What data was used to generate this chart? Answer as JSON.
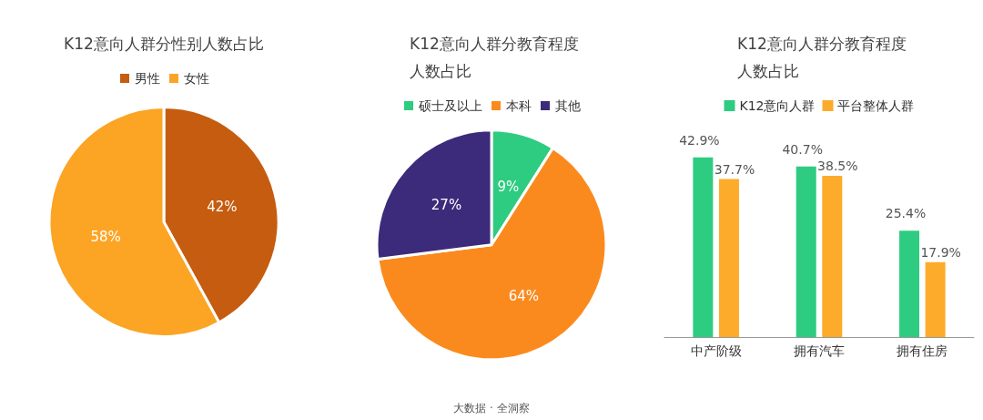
{
  "chart_data": [
    {
      "type": "pie",
      "title": "K12意向人群分性别人数占比",
      "categories": [
        "男性",
        "女性"
      ],
      "values": [
        42,
        58
      ],
      "colors": [
        "#c55c10",
        "#fca424"
      ],
      "value_labels": [
        "42%",
        "58%"
      ],
      "legend": "top"
    },
    {
      "type": "pie",
      "title": "K12意向人群分教育程度人数占比",
      "categories": [
        "硕士及以上",
        "本科",
        "其他"
      ],
      "values": [
        9,
        64,
        27
      ],
      "colors": [
        "#2ecc80",
        "#fb8a1e",
        "#3c2a7a"
      ],
      "value_labels": [
        "9%",
        "64%",
        "27%"
      ],
      "legend": "top"
    },
    {
      "type": "bar",
      "title": "K12意向人群分教育程度人数占比",
      "categories": [
        "中产阶级",
        "拥有汽车",
        "拥有住房"
      ],
      "series": [
        {
          "name": "K12意向人群",
          "color": "#2ecc80",
          "values": [
            42.9,
            40.7,
            25.4
          ],
          "value_labels": [
            "42.9%",
            "40.7%",
            "25.4%"
          ]
        },
        {
          "name": "平台整体人群",
          "color": "#fdab2b",
          "values": [
            37.7,
            38.5,
            17.9
          ],
          "value_labels": [
            "37.7%",
            "38.5%",
            "17.9%"
          ]
        }
      ],
      "legend": "top",
      "annotations": [
        "大数据 · 全洞察"
      ]
    }
  ]
}
